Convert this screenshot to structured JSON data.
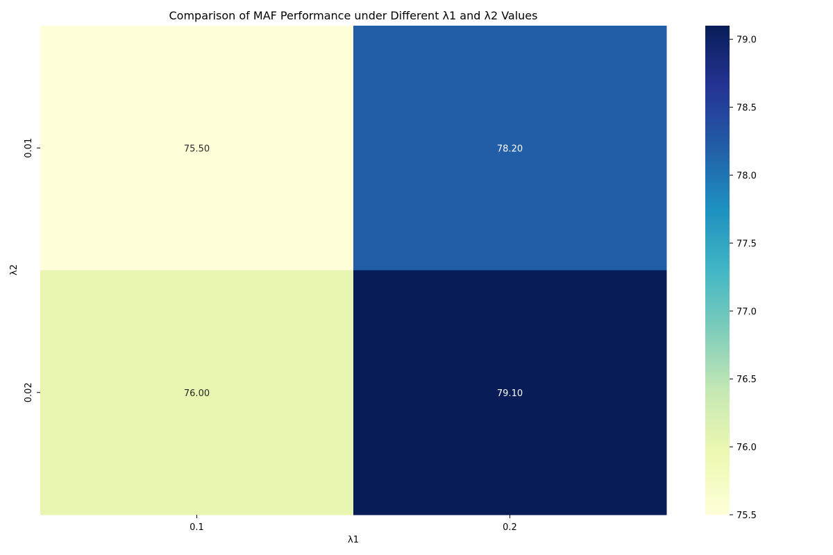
{
  "chart_data": {
    "type": "heatmap",
    "title": "Comparison of MAF Performance under Different λ1 and λ2 Values",
    "xlabel": "λ1",
    "ylabel": "λ2",
    "x_categories": [
      "0.1",
      "0.2"
    ],
    "y_categories": [
      "0.01",
      "0.02"
    ],
    "values": [
      [
        75.5,
        78.2
      ],
      [
        76.0,
        79.1
      ]
    ],
    "cell_labels": [
      [
        "75.50",
        "78.20"
      ],
      [
        "76.00",
        "79.10"
      ]
    ],
    "colorbar": {
      "range": [
        75.5,
        79.1
      ],
      "ticks": [
        "75.5",
        "76.0",
        "76.5",
        "77.0",
        "77.5",
        "78.0",
        "78.5",
        "79.0"
      ],
      "colormap": "YlGnBu"
    },
    "grid": false,
    "legend": "colorbar-right"
  }
}
